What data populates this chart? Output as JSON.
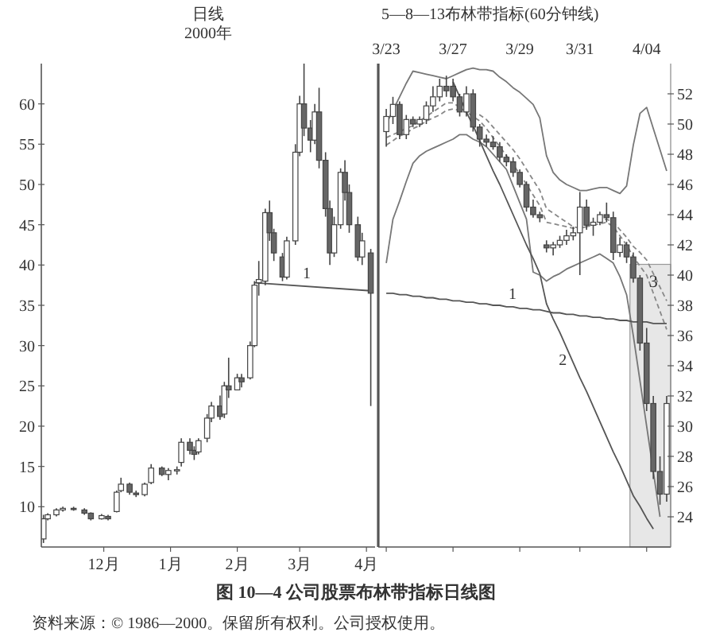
{
  "chart_data": [
    {
      "type": "candlestick",
      "title": "日线",
      "subtitle": "2000年",
      "x": [
        "1999-11-03",
        "1999-11-05",
        "1999-11-09",
        "1999-11-12",
        "1999-11-17",
        "1999-11-22",
        "1999-11-25",
        "1999-11-30",
        "1999-12-03",
        "1999-12-07",
        "1999-12-09",
        "1999-12-13",
        "1999-12-16",
        "1999-12-20",
        "1999-12-23",
        "1999-12-28",
        "1999-12-31",
        "2000-01-04",
        "2000-01-06",
        "2000-01-10",
        "2000-01-12",
        "2000-01-14",
        "2000-01-18",
        "2000-01-20",
        "2000-01-24",
        "2000-01-26",
        "2000-01-28",
        "2000-02-01",
        "2000-02-03",
        "2000-02-07",
        "2000-02-09",
        "2000-02-11",
        "2000-02-14",
        "2000-02-16",
        "2000-02-18",
        "2000-02-22",
        "2000-02-24",
        "2000-02-28",
        "2000-03-01",
        "2000-03-03",
        "2000-03-06",
        "2000-03-08",
        "2000-03-10",
        "2000-03-13",
        "2000-03-15",
        "2000-03-17",
        "2000-03-20",
        "2000-03-22",
        "2000-03-24",
        "2000-03-28",
        "2000-03-30",
        "2000-04-03"
      ],
      "ohlc": [
        [
          6,
          9,
          5.5,
          8.5
        ],
        [
          8.5,
          9.2,
          8.3,
          9
        ],
        [
          9,
          9.8,
          8.8,
          9.6
        ],
        [
          9.6,
          10,
          9.4,
          9.8
        ],
        [
          9.8,
          10,
          9.5,
          9.7
        ],
        [
          9.6,
          9.8,
          9,
          9.2
        ],
        [
          9.2,
          9.3,
          8.3,
          8.5
        ],
        [
          8.5,
          9.1,
          8.4,
          8.9
        ],
        [
          8.8,
          9,
          8.3,
          8.5
        ],
        [
          9.4,
          12,
          9.3,
          11.8
        ],
        [
          12,
          13.6,
          11.8,
          12.8
        ],
        [
          12.8,
          13,
          11.5,
          11.8
        ],
        [
          11.7,
          12,
          11.2,
          11.5
        ],
        [
          11.5,
          13,
          11.3,
          12.8
        ],
        [
          13,
          15.3,
          12.8,
          14.8
        ],
        [
          14.8,
          15,
          13.8,
          14
        ],
        [
          14,
          14.8,
          13.3,
          14.5
        ],
        [
          14.5,
          15,
          14,
          14.6
        ],
        [
          15.5,
          18.5,
          15,
          18
        ],
        [
          18,
          18.5,
          16.5,
          17
        ],
        [
          17,
          17.5,
          15.8,
          16.5
        ],
        [
          16.8,
          18.5,
          16.5,
          18.2
        ],
        [
          18.5,
          21.5,
          18,
          21
        ],
        [
          21,
          23,
          20.5,
          22.5
        ],
        [
          22.5,
          23.8,
          20.8,
          21.2
        ],
        [
          21.5,
          25.5,
          21,
          25
        ],
        [
          25,
          28.5,
          23.5,
          24.5
        ],
        [
          24.5,
          26.5,
          24.5,
          26
        ],
        [
          26,
          26.5,
          24.8,
          25.5
        ],
        [
          26,
          30.5,
          25.8,
          30
        ],
        [
          30,
          38,
          29.8,
          37.5
        ],
        [
          37.8,
          40.5,
          36.2,
          38.2
        ],
        [
          38,
          47,
          37.5,
          46.5
        ],
        [
          46.5,
          48,
          43,
          44
        ],
        [
          44,
          44.5,
          40.5,
          41.5
        ],
        [
          41,
          41.5,
          38,
          38.5
        ],
        [
          38.5,
          43.5,
          38.2,
          43
        ],
        [
          43,
          55,
          42.5,
          54
        ],
        [
          54,
          61,
          53.5,
          60
        ],
        [
          60,
          65,
          56,
          57
        ],
        [
          57,
          58,
          54,
          55.5
        ],
        [
          55.5,
          60,
          55,
          59
        ],
        [
          59,
          62,
          52,
          53
        ],
        [
          53,
          54,
          46,
          47
        ],
        [
          47,
          48,
          40,
          41.5
        ],
        [
          41.5,
          46,
          41,
          45
        ],
        [
          45,
          52,
          44.5,
          51.5
        ],
        [
          51.5,
          53,
          48,
          49
        ],
        [
          49,
          50,
          44,
          45
        ],
        [
          45,
          46,
          40.5,
          41
        ],
        [
          41,
          44,
          40,
          43
        ],
        [
          41.5,
          42,
          22.5,
          36.5
        ]
      ],
      "series": [
        {
          "type": "line",
          "name": "1",
          "x": [
            "2000-02-09",
            "2000-04-03"
          ],
          "values": [
            37.8,
            36.8
          ],
          "color": "#555555",
          "line_style": "solid"
        }
      ],
      "xlim": [
        "1999-11-02",
        "2000-04-05"
      ],
      "ylim": [
        5,
        65
      ],
      "xticks": [
        {
          "value": "1999-12-01",
          "label": "12月"
        },
        {
          "value": "2000-01-01",
          "label": "1月"
        },
        {
          "value": "2000-02-01",
          "label": "2月"
        },
        {
          "value": "2000-03-01",
          "label": "3月"
        },
        {
          "value": "2000-04-01",
          "label": "4月"
        }
      ],
      "yticks": [
        10,
        15,
        20,
        25,
        30,
        35,
        40,
        45,
        50,
        55,
        60
      ],
      "annotations": [
        "图 10—4 公司股票布林带指标日线图",
        "资料来源：© 1986—2000。保留所有权利。公司授权使用。"
      ]
    },
    {
      "type": "candlestick",
      "title": "5—8—13布林带指标(60分钟线)",
      "categories": [
        "3/23",
        null,
        null,
        null,
        null,
        null,
        null,
        null,
        null,
        null,
        "3/27",
        null,
        null,
        null,
        null,
        null,
        null,
        null,
        null,
        null,
        "3/29",
        null,
        null,
        null,
        null,
        null,
        null,
        null,
        null,
        "3/31",
        null,
        null,
        null,
        null,
        null,
        null,
        null,
        null,
        null,
        "4/04",
        null,
        null,
        null
      ],
      "ohlc": [
        [
          49.5,
          51,
          48.5,
          50.5
        ],
        [
          50.5,
          51.8,
          50,
          51.3
        ],
        [
          51.3,
          51.5,
          49,
          49.3
        ],
        [
          49.3,
          50.6,
          49,
          50.3
        ],
        [
          50.3,
          50.5,
          49.8,
          50
        ],
        [
          50,
          50.5,
          49.8,
          50.3
        ],
        [
          50.3,
          51.5,
          50,
          51.2
        ],
        [
          51.2,
          52.5,
          50.8,
          51.8
        ],
        [
          51.8,
          53,
          51.5,
          52.5
        ],
        [
          52.5,
          53.2,
          51.8,
          52.2
        ],
        [
          52.5,
          53,
          51.5,
          51.8
        ],
        [
          51.8,
          52,
          50.5,
          50.8
        ],
        [
          50.8,
          52.5,
          50.5,
          52
        ],
        [
          52,
          52.3,
          49.5,
          49.8
        ],
        [
          49.8,
          50,
          48.5,
          49
        ],
        [
          49,
          49.3,
          48.5,
          48.8
        ],
        [
          48.8,
          49.2,
          48.3,
          48.5
        ],
        [
          48.5,
          48.8,
          47.5,
          47.8
        ],
        [
          47.8,
          48,
          47.2,
          47.5
        ],
        [
          47.5,
          47.8,
          46.5,
          46.8
        ],
        [
          46.8,
          47,
          45.8,
          46
        ],
        [
          46,
          46.2,
          44.2,
          44.5
        ],
        [
          44.5,
          45,
          43.8,
          44
        ],
        [
          44,
          44.2,
          43.5,
          43.8
        ],
        [
          42,
          42.3,
          41.5,
          41.8
        ],
        [
          41.8,
          42.2,
          41.3,
          42
        ],
        [
          42,
          42.6,
          41.8,
          42.3
        ],
        [
          42.3,
          43,
          42,
          42.6
        ],
        [
          42.6,
          43.2,
          42.3,
          42.8
        ],
        [
          42.8,
          45.5,
          40,
          44.5
        ],
        [
          44.5,
          45,
          43,
          43.3
        ],
        [
          43.3,
          43.8,
          42.6,
          43.5
        ],
        [
          43.5,
          44.2,
          43.3,
          44
        ],
        [
          44,
          44.8,
          43.5,
          43.8
        ],
        [
          43.8,
          44.2,
          41,
          41.5
        ],
        [
          41.5,
          42.5,
          41.2,
          42
        ],
        [
          42,
          42.2,
          40.8,
          41.2
        ],
        [
          41.2,
          41.5,
          39.5,
          39.8
        ],
        [
          39.8,
          40,
          35,
          35.5
        ],
        [
          35.5,
          36.5,
          31,
          31.5
        ],
        [
          31.5,
          32,
          26.5,
          27
        ],
        [
          27,
          28,
          24.8,
          25.5
        ],
        [
          25.5,
          32,
          25,
          31.5
        ]
      ],
      "series": [
        {
          "type": "line",
          "values": [
            50.0,
            50.9,
            51.8,
            52.7,
            53.5,
            53.4,
            53.3,
            53.2,
            53.1,
            53.0,
            53.2,
            53.4,
            53.6,
            53.7,
            53.6,
            53.6,
            53.5,
            53.1,
            52.8,
            52.4,
            52.1,
            51.7,
            51.3,
            50.4,
            47.9,
            46.8,
            46.3,
            46.0,
            45.8,
            45.6,
            45.6,
            45.7,
            45.8,
            45.8,
            45.6,
            45.4,
            45.9,
            48.6,
            50.7,
            51.1,
            49.7,
            48.3,
            46.9
          ],
          "color": "#777777",
          "line_style": "solid"
        },
        {
          "type": "line",
          "values": [
            40.8,
            43.7,
            44.9,
            46.2,
            47.4,
            47.9,
            48.2,
            48.4,
            48.6,
            48.8,
            49.0,
            49.3,
            49.3,
            49.0,
            48.8,
            48.5,
            48.0,
            47.5,
            47.0,
            45.9,
            44.8,
            43.7,
            40.2,
            40.0,
            39.6,
            39.9,
            40.1,
            40.4,
            40.6,
            40.8,
            41.0,
            41.2,
            41.4,
            41.1,
            40.8,
            39.9,
            38.7,
            36.0,
            33.0,
            30.0,
            27.0,
            24.0,
            null
          ],
          "color": "#777777",
          "line_style": "solid"
        },
        {
          "type": "line",
          "values": [
            49.1,
            49.3,
            49.5,
            49.7,
            49.9,
            50.2,
            50.5,
            50.8,
            51.1,
            51.4,
            51.4,
            51.1,
            50.8,
            50.5,
            50.2,
            49.7,
            49.1,
            48.5,
            47.9,
            47.3,
            46.7,
            46.0,
            45.3,
            44.6,
            43.5,
            43.4,
            43.3,
            43.2,
            43.1,
            43.1,
            43.2,
            43.3,
            43.4,
            43.5,
            43.2,
            42.6,
            42.0,
            41.2,
            40.6,
            40.0,
            38.8,
            37.6,
            36.4
          ],
          "color": "#888888",
          "line_style": "dashed"
        },
        {
          "type": "line",
          "values": [
            48.6,
            48.9,
            49.2,
            49.4,
            49.7,
            49.9,
            50.2,
            50.4,
            50.6,
            50.9,
            51.0,
            50.9,
            50.8,
            50.7,
            50.6,
            50.3,
            49.8,
            49.3,
            48.8,
            48.3,
            47.7,
            47.0,
            46.3,
            45.6,
            44.4,
            44.1,
            43.8,
            43.5,
            43.2,
            43.1,
            43.2,
            43.4,
            43.6,
            43.7,
            43.5,
            43.0,
            42.5,
            41.9,
            41.5,
            41.0,
            40.1,
            39.2,
            38.3
          ],
          "color": "#888888",
          "line_style": "dashed"
        },
        {
          "type": "line",
          "name": "1",
          "values": [
            38.8,
            38.8,
            38.7,
            38.7,
            38.6,
            38.6,
            38.5,
            38.5,
            38.4,
            38.4,
            38.3,
            38.3,
            38.2,
            38.2,
            38.1,
            38.1,
            38.0,
            38.0,
            37.9,
            37.9,
            37.8,
            37.8,
            37.7,
            37.7,
            37.6,
            37.5,
            37.5,
            37.4,
            37.4,
            37.3,
            37.3,
            37.2,
            37.2,
            37.1,
            37.1,
            37.0,
            37.0,
            36.9,
            36.9,
            36.9,
            36.8,
            36.8,
            36.8
          ],
          "color": "#555555",
          "line_style": "solid"
        },
        {
          "type": "line",
          "name": "2",
          "values": [
            null,
            null,
            null,
            null,
            null,
            null,
            null,
            null,
            null,
            null,
            52.8,
            51.8,
            50.8,
            49.9,
            48.9,
            47.9,
            46.9,
            46.0,
            45.0,
            44.0,
            43.0,
            42.0,
            41.1,
            40.1,
            38.1,
            37.1,
            36.2,
            35.2,
            34.2,
            33.2,
            32.3,
            31.3,
            30.3,
            29.3,
            28.3,
            27.4,
            26.4,
            25.4,
            24.7,
            23.9,
            23.2,
            null,
            null
          ],
          "color": "#555555",
          "line_style": "solid"
        }
      ],
      "ylim": [
        22,
        54
      ],
      "yticks": [
        24,
        26,
        28,
        30,
        32,
        34,
        36,
        38,
        40,
        42,
        44,
        46,
        48,
        50,
        52
      ],
      "annotations": [
        {
          "text": "3",
          "x": "4/04",
          "y": 36.5
        }
      ]
    }
  ]
}
